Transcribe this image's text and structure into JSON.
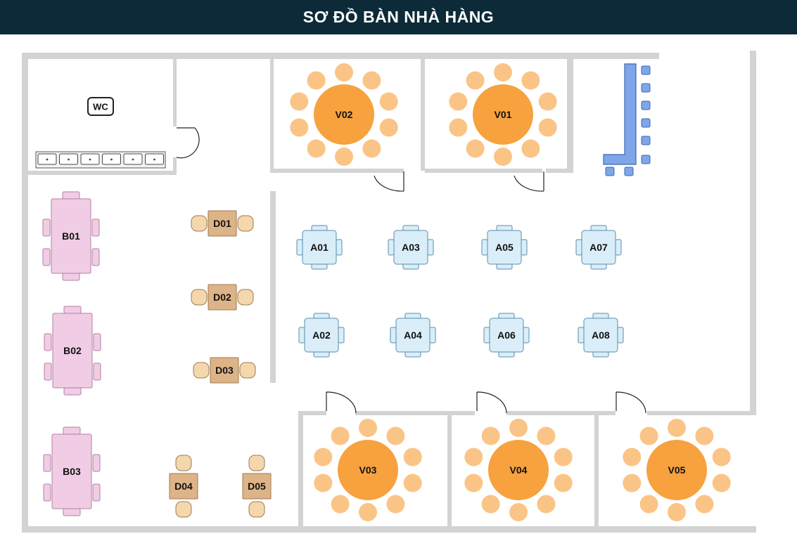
{
  "title": "SƠ ĐỒ BÀN NHÀ HÀNG",
  "restroom": {
    "label": "WC"
  },
  "colors": {
    "header_bg": "#0c2a38",
    "wall": "#d3d3d3",
    "vip_table": "#f7a23e",
    "vip_chair": "#fbc487",
    "b_table": "#f0cde4",
    "b_stroke": "#b47fa6",
    "d_table": "#ddb487",
    "d_chair": "#f5d7ad",
    "a_table": "#d9eef8",
    "a_stroke": "#5a8fab",
    "bar": "#7fa6e8",
    "bar_stroke": "#3d66b3"
  },
  "tables": {
    "vip": [
      {
        "id": "v02",
        "label": "V02"
      },
      {
        "id": "v01",
        "label": "V01"
      },
      {
        "id": "v03",
        "label": "V03"
      },
      {
        "id": "v04",
        "label": "V04"
      },
      {
        "id": "v05",
        "label": "V05"
      }
    ],
    "long": [
      {
        "id": "b01",
        "label": "B01"
      },
      {
        "id": "b02",
        "label": "B02"
      },
      {
        "id": "b03",
        "label": "B03"
      }
    ],
    "two_seat": [
      {
        "id": "d01",
        "label": "D01"
      },
      {
        "id": "d02",
        "label": "D02"
      },
      {
        "id": "d03",
        "label": "D03"
      },
      {
        "id": "d04",
        "label": "D04"
      },
      {
        "id": "d05",
        "label": "D05"
      }
    ],
    "four_seat": [
      {
        "id": "a01",
        "label": "A01"
      },
      {
        "id": "a03",
        "label": "A03"
      },
      {
        "id": "a05",
        "label": "A05"
      },
      {
        "id": "a07",
        "label": "A07"
      },
      {
        "id": "a02",
        "label": "A02"
      },
      {
        "id": "a04",
        "label": "A04"
      },
      {
        "id": "a06",
        "label": "A06"
      },
      {
        "id": "a08",
        "label": "A08"
      }
    ]
  }
}
